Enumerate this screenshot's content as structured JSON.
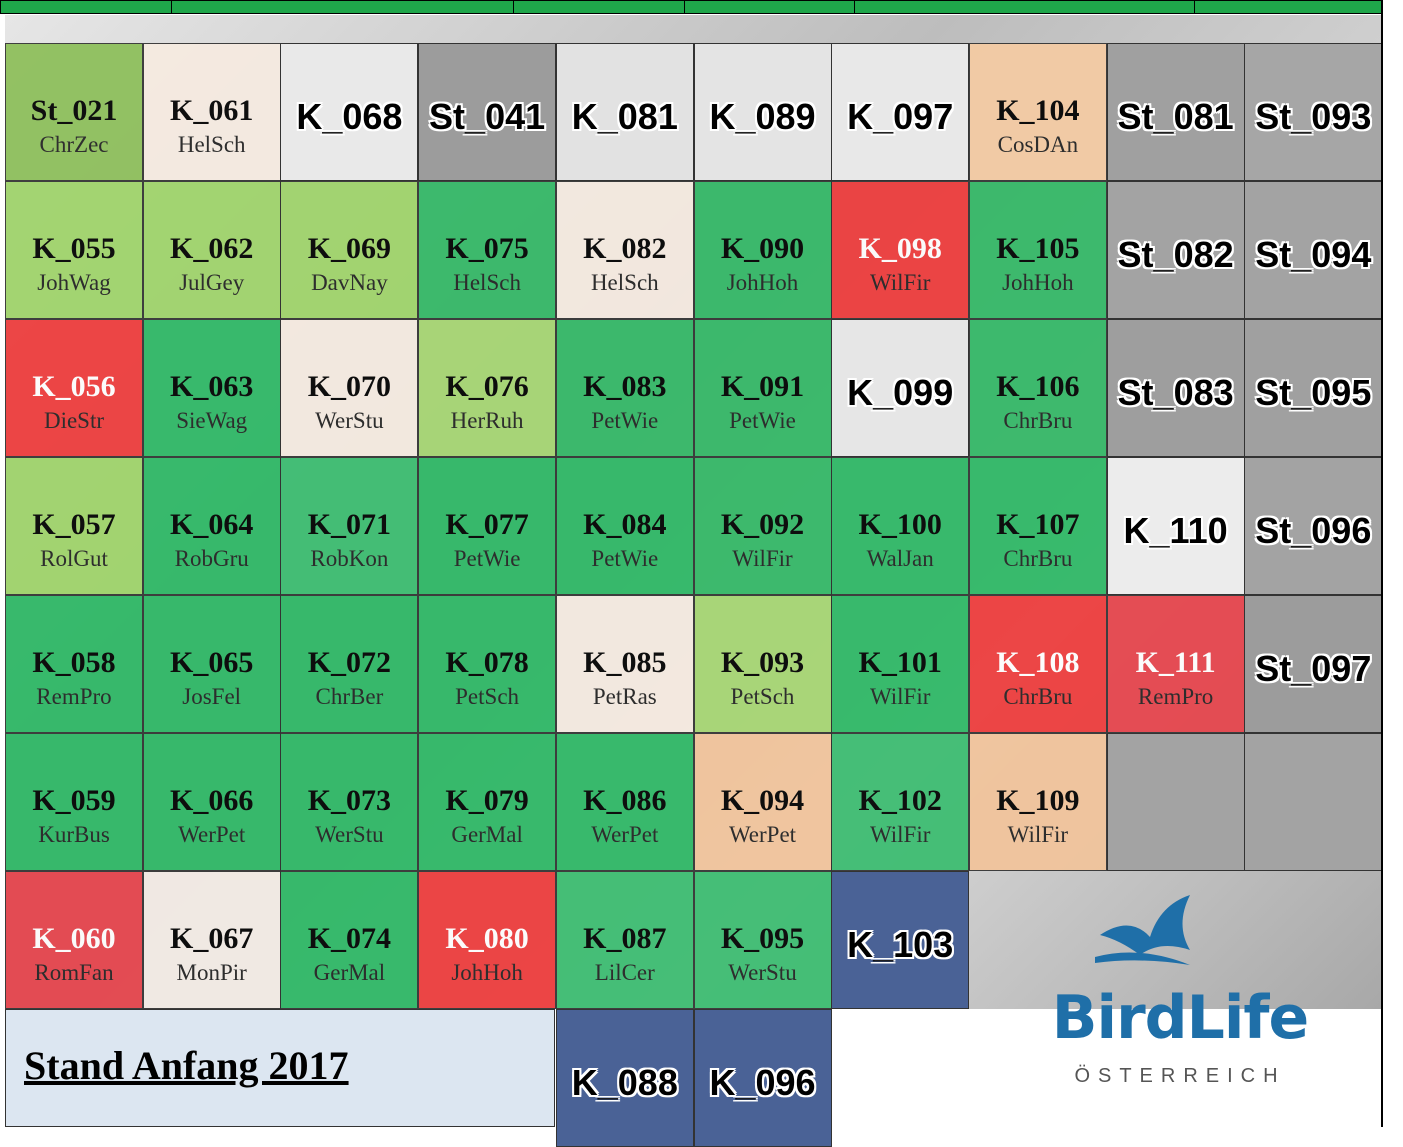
{
  "title": "Stand Anfang  2017",
  "logo": {
    "brand": "BirdLife",
    "country": "ÖSTERREICH"
  },
  "rows": [
    [
      {
        "code": "St_021",
        "name": "ChrZec",
        "color": "#8dbf5a"
      },
      {
        "code": "K_061",
        "name": "HelSch",
        "color": "#f6ebe1"
      },
      {
        "code": "K_068",
        "color": "#e9e9e9"
      },
      {
        "code": "St_041",
        "color": "#9c9c9c"
      },
      {
        "code": "K_081",
        "color": "#e2e2e2"
      },
      {
        "code": "K_089",
        "color": "#e4e4e4"
      },
      {
        "code": "K_097",
        "color": "#e8e8e8"
      },
      {
        "code": "K_104",
        "name": "CosDAn",
        "color": "#f5cba3"
      },
      {
        "code": "St_081",
        "color": "#a0a0a0"
      },
      {
        "code": "St_093",
        "color": "#a6a6a6"
      }
    ],
    [
      {
        "code": "K_055",
        "name": "JohWag",
        "color": "#9fd46a"
      },
      {
        "code": "K_062",
        "name": "JulGey",
        "color": "#9fd46a"
      },
      {
        "code": "K_069",
        "name": "DavNay",
        "color": "#9fd46a"
      },
      {
        "code": "K_075",
        "name": "HelSch",
        "color": "#33b866"
      },
      {
        "code": "K_082",
        "name": "HelSch",
        "color": "#f6ebe1"
      },
      {
        "code": "K_090",
        "name": "JohHoh",
        "color": "#33b866"
      },
      {
        "code": "K_098",
        "name": "WilFir",
        "color": "#ee3b3b"
      },
      {
        "code": "K_105",
        "name": "JohHoh",
        "color": "#33b866"
      },
      {
        "code": "St_082",
        "color": "#a3a3a3"
      },
      {
        "code": "St_094",
        "color": "#a3a3a3"
      }
    ],
    [
      {
        "code": "K_056",
        "name": "DieStr",
        "color": "#ee3b3b"
      },
      {
        "code": "K_063",
        "name": "SieWag",
        "color": "#2db865"
      },
      {
        "code": "K_070",
        "name": "WerStu",
        "color": "#f6ebe1"
      },
      {
        "code": "K_076",
        "name": "HerRuh",
        "color": "#a6d672"
      },
      {
        "code": "K_083",
        "name": "PetWie",
        "color": "#33b866"
      },
      {
        "code": "K_091",
        "name": "PetWie",
        "color": "#33b866"
      },
      {
        "code": "K_099",
        "color": "#e6e6e6"
      },
      {
        "code": "K_106",
        "name": "ChrBru",
        "color": "#33b866"
      },
      {
        "code": "St_083",
        "color": "#9e9e9e"
      },
      {
        "code": "St_095",
        "color": "#a0a0a0"
      }
    ],
    [
      {
        "code": "K_057",
        "name": "RolGut",
        "color": "#9fd46a"
      },
      {
        "code": "K_064",
        "name": "RobGru",
        "color": "#2db865"
      },
      {
        "code": "K_071",
        "name": "RobKon",
        "color": "#3bbd70"
      },
      {
        "code": "K_077",
        "name": "PetWie",
        "color": "#2db865"
      },
      {
        "code": "K_084",
        "name": "PetWie",
        "color": "#2db865"
      },
      {
        "code": "K_092",
        "name": "WilFir",
        "color": "#33b866"
      },
      {
        "code": "K_100",
        "name": "WalJan",
        "color": "#2db865"
      },
      {
        "code": "K_107",
        "name": "ChrBru",
        "color": "#2db865"
      },
      {
        "code": "K_110",
        "color": "#ececec"
      },
      {
        "code": "St_096",
        "color": "#a3a3a3"
      }
    ],
    [
      {
        "code": "K_058",
        "name": "RemPro",
        "color": "#2db865"
      },
      {
        "code": "K_065",
        "name": "JosFel",
        "color": "#2db865"
      },
      {
        "code": "K_072",
        "name": "ChrBer",
        "color": "#2db865"
      },
      {
        "code": "K_078",
        "name": "PetSch",
        "color": "#2db865"
      },
      {
        "code": "K_085",
        "name": "PetRas",
        "color": "#f6ebe1"
      },
      {
        "code": "K_093",
        "name": "PetSch",
        "color": "#a6d672"
      },
      {
        "code": "K_101",
        "name": "WilFir",
        "color": "#2db865"
      },
      {
        "code": "K_108",
        "name": "ChrBru",
        "color": "#ee3b3b"
      },
      {
        "code": "K_111",
        "name": "RemPro",
        "color": "#e6434b"
      },
      {
        "code": "St_097",
        "color": "#9c9c9c"
      }
    ],
    [
      {
        "code": "K_059",
        "name": "KurBus",
        "color": "#2db865"
      },
      {
        "code": "K_066",
        "name": "WerPet",
        "color": "#2db865"
      },
      {
        "code": "K_073",
        "name": "WerStu",
        "color": "#2db865"
      },
      {
        "code": "K_079",
        "name": "GerMal",
        "color": "#2db865"
      },
      {
        "code": "K_086",
        "name": "WerPet",
        "color": "#2db865"
      },
      {
        "code": "K_094",
        "name": "WerPet",
        "color": "#f2c49b"
      },
      {
        "code": "K_102",
        "name": "WilFir",
        "color": "#3bbd70"
      },
      {
        "code": "K_109",
        "name": "WilFir",
        "color": "#f2c49b"
      },
      {
        "color": "#a3a3a3"
      },
      {
        "color": "#a3a3a3"
      }
    ],
    [
      {
        "code": "K_060",
        "name": "RomFan",
        "color": "#e6434b"
      },
      {
        "code": "K_067",
        "name": "MonPir",
        "color": "#f4ece6"
      },
      {
        "code": "K_074",
        "name": "GerMal",
        "color": "#2db865"
      },
      {
        "code": "K_080",
        "name": "JohHoh",
        "color": "#ee3b3b"
      },
      {
        "code": "K_087",
        "name": "LilCer",
        "color": "#3bbd70"
      },
      {
        "code": "K_095",
        "name": "WerStu",
        "color": "#3bbd70"
      },
      {
        "code": "K_103",
        "color": "#4a6296"
      }
    ],
    [
      {
        "code": "K_088",
        "color": "#4a6296"
      },
      {
        "code": "K_096",
        "color": "#4a6296"
      }
    ]
  ]
}
